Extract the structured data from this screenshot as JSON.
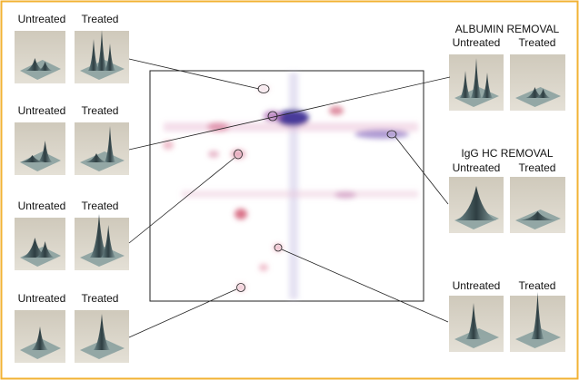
{
  "left_panels": [
    {
      "labels": [
        "Untreated",
        "Treated"
      ]
    },
    {
      "labels": [
        "Untreated",
        "Treated"
      ]
    },
    {
      "labels": [
        "Untreated",
        "Treated"
      ]
    },
    {
      "labels": [
        "Untreated",
        "Treated"
      ]
    }
  ],
  "right_panels": [
    {
      "title": "ALBUMIN REMOVAL",
      "labels": [
        "Untreated",
        "Treated"
      ]
    },
    {
      "title": "IgG HC REMOVAL",
      "labels": [
        "Untreated",
        "Treated"
      ]
    },
    {
      "labels": [
        "Untreated",
        "Treated"
      ]
    }
  ]
}
